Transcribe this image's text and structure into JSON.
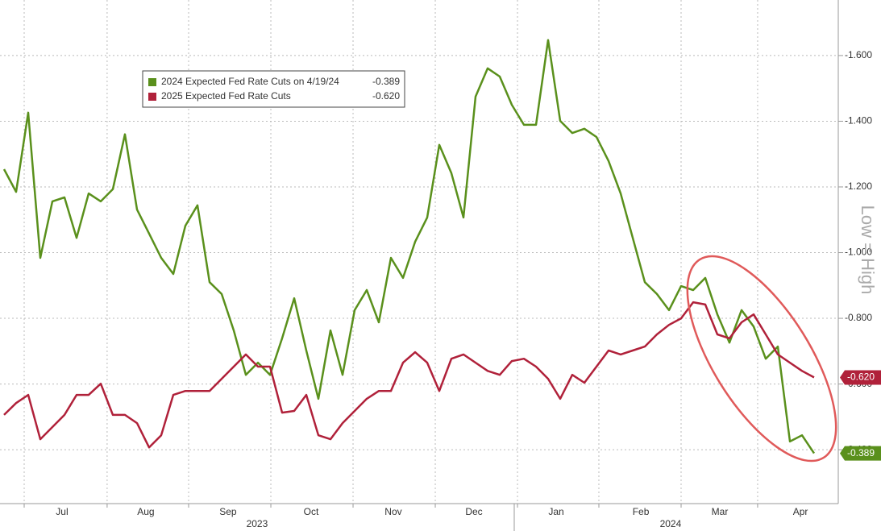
{
  "chart_data": {
    "type": "line",
    "annotation": "Low = High",
    "year_labels": [
      {
        "value": 20.93,
        "label": "2023"
      },
      {
        "value": 55.13,
        "label": "2024"
      }
    ],
    "year_divider": 42.2,
    "xlim": [
      -0.33,
      69
    ],
    "xticks": [
      {
        "value": 4.8,
        "label": "Jul"
      },
      {
        "value": 11.73,
        "label": "Aug"
      },
      {
        "value": 18.53,
        "label": "Sep"
      },
      {
        "value": 25.4,
        "label": "Oct"
      },
      {
        "value": 32.2,
        "label": "Nov"
      },
      {
        "value": 38.87,
        "label": "Dec"
      },
      {
        "value": 45.67,
        "label": "Jan"
      },
      {
        "value": 52.67,
        "label": "Feb"
      },
      {
        "value": 59.2,
        "label": "Mar"
      },
      {
        "value": 65.87,
        "label": "Apr"
      }
    ],
    "xgrid": [
      1.67,
      8.53,
      15.27,
      22.07,
      28.87,
      35.67,
      42.47,
      49.2,
      56,
      62.33
    ],
    "ylim": [
      -1.769,
      -0.236
    ],
    "y_inverted": true,
    "yticks": [
      {
        "value": -1.6,
        "label": "-1.600"
      },
      {
        "value": -1.4,
        "label": "-1.400"
      },
      {
        "value": -1.2,
        "label": "-1.200"
      },
      {
        "value": -1.0,
        "label": "-1.000"
      },
      {
        "value": -0.8,
        "label": "-0.800"
      },
      {
        "value": -0.6,
        "label": "-0.600"
      },
      {
        "value": -0.4,
        "label": "-0.400"
      }
    ],
    "grid": true,
    "series": [
      {
        "name": "2024 Expected Fed Rate Cuts on 4/19/24",
        "legend_value": "-0.389",
        "color": "#5a901c",
        "values": [
          -1.254,
          -1.185,
          -1.426,
          -0.984,
          -1.156,
          -1.168,
          -1.045,
          -1.18,
          -1.156,
          -1.193,
          -1.36,
          -1.131,
          -1.058,
          -0.984,
          -0.935,
          -1.082,
          -1.144,
          -0.91,
          -0.874,
          -0.763,
          -0.628,
          -0.665,
          -0.628,
          -0.739,
          -0.861,
          -0.702,
          -0.555,
          -0.763,
          -0.628,
          -0.825,
          -0.886,
          -0.788,
          -0.984,
          -0.923,
          -1.033,
          -1.107,
          -1.328,
          -1.242,
          -1.107,
          -1.475,
          -1.561,
          -1.536,
          -1.45,
          -1.389,
          -1.389,
          -1.647,
          -1.401,
          -1.364,
          -1.377,
          -1.352,
          -1.279,
          -1.18,
          -1.045,
          -0.91,
          -0.874,
          -0.825,
          -0.898,
          -0.886,
          -0.923,
          -0.812,
          -0.726,
          -0.825,
          -0.775,
          -0.677,
          -0.714,
          -0.425,
          -0.444,
          -0.389
        ],
        "last_label": "-0.389"
      },
      {
        "name": "2025 Expected Fed Rate Cuts",
        "legend_value": "-0.620",
        "color": "#b0213a",
        "values": [
          -0.506,
          -0.542,
          -0.567,
          -0.432,
          -0.469,
          -0.506,
          -0.567,
          -0.567,
          -0.601,
          -0.506,
          -0.506,
          -0.481,
          -0.407,
          -0.444,
          -0.567,
          -0.579,
          -0.579,
          -0.579,
          -0.616,
          -0.653,
          -0.69,
          -0.653,
          -0.653,
          -0.513,
          -0.518,
          -0.567,
          -0.444,
          -0.432,
          -0.481,
          -0.518,
          -0.555,
          -0.579,
          -0.579,
          -0.665,
          -0.697,
          -0.665,
          -0.579,
          -0.677,
          -0.69,
          -0.665,
          -0.64,
          -0.628,
          -0.67,
          -0.677,
          -0.653,
          -0.616,
          -0.555,
          -0.628,
          -0.604,
          -0.653,
          -0.702,
          -0.69,
          -0.702,
          -0.714,
          -0.751,
          -0.78,
          -0.8,
          -0.849,
          -0.842,
          -0.751,
          -0.739,
          -0.788,
          -0.812,
          -0.751,
          -0.69,
          -0.665,
          -0.64,
          -0.62
        ],
        "last_label": "-0.620"
      }
    ]
  }
}
